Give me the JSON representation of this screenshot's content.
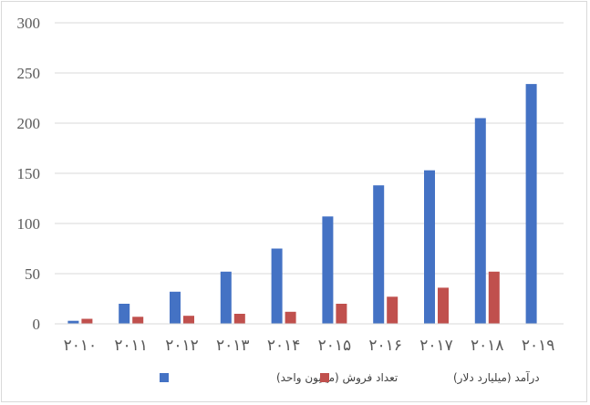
{
  "chart_data": {
    "type": "bar",
    "title": "",
    "xlabel": "",
    "ylabel": "",
    "categories": [
      "۲۰۱۰",
      "۲۰۱۱",
      "۲۰۱۲",
      "۲۰۱۳",
      "۲۰۱۴",
      "۲۰۱۵",
      "۲۰۱۶",
      "۲۰۱۷",
      "۲۰۱۸",
      "۲۰۱۹"
    ],
    "series": [
      {
        "name": "تعداد فروش (میلیون واحد)",
        "color": "#4472c4",
        "values": [
          3,
          20,
          32,
          52,
          75,
          107,
          138,
          153,
          205,
          239
        ]
      },
      {
        "name": "درآمد (میلیارد دلار)",
        "color": "#c0504d",
        "values": [
          5,
          7,
          8,
          10,
          12,
          20,
          27,
          36,
          52,
          0
        ]
      }
    ],
    "ylim": [
      0,
      300
    ],
    "yticks": [
      "0",
      "50",
      "100",
      "150",
      "200",
      "250",
      "300"
    ],
    "grid": true,
    "legend_position": "bottom"
  }
}
